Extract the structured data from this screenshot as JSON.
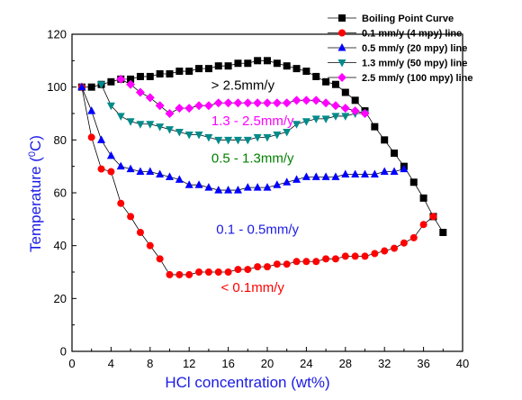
{
  "chart_data": {
    "type": "line",
    "xlabel": "HCl concentration (wt%)",
    "ylabel": "Temperature (°C)",
    "ylabel_main": "Temperature (",
    "ylabel_sup": "0",
    "ylabel_unit": "C)",
    "xlim": [
      0,
      40
    ],
    "ylim": [
      0,
      120
    ],
    "xticks": [
      0,
      4,
      8,
      12,
      16,
      20,
      24,
      28,
      32,
      36,
      40
    ],
    "yticks": [
      0,
      20,
      40,
      60,
      80,
      100,
      120
    ],
    "grid": false,
    "legend_position": "top-right",
    "series": [
      {
        "name": "Boiling Point Curve",
        "color": "#000000",
        "marker": "square",
        "x": [
          1,
          2,
          3,
          4,
          5,
          6,
          7,
          8,
          9,
          10,
          11,
          12,
          13,
          14,
          15,
          16,
          17,
          18,
          19,
          20,
          21,
          22,
          23,
          24,
          25,
          26,
          27,
          28,
          29,
          30,
          31,
          32,
          33,
          34,
          35,
          36,
          37,
          38
        ],
        "y": [
          100,
          100,
          101,
          102,
          103,
          103,
          104,
          104,
          105,
          105,
          106,
          106,
          107,
          107,
          108,
          108,
          109,
          109,
          110,
          110,
          109,
          108,
          107,
          106,
          104,
          102,
          101,
          98,
          95,
          91,
          85,
          80,
          75,
          70,
          64,
          58,
          51,
          45
        ]
      },
      {
        "name": "0.1 mm/y (4 mpy) line",
        "color": "#ff0000",
        "marker": "circle",
        "x": [
          1,
          2,
          3,
          4,
          5,
          6,
          7,
          8,
          9,
          10,
          11,
          12,
          13,
          14,
          15,
          16,
          17,
          18,
          19,
          20,
          21,
          22,
          23,
          24,
          25,
          26,
          27,
          28,
          29,
          30,
          31,
          32,
          33,
          34,
          35,
          36,
          37
        ],
        "y": [
          100,
          81,
          69,
          68,
          56,
          51,
          45,
          40,
          35,
          29,
          29,
          29,
          30,
          30,
          30,
          30,
          31,
          31,
          32,
          32,
          33,
          33,
          34,
          34,
          34,
          35,
          35,
          36,
          36,
          36,
          37,
          38,
          39,
          41,
          43,
          48,
          51
        ]
      },
      {
        "name": "0.5 mm/y (20 mpy) line",
        "color": "#0000ff",
        "marker": "triangle-up",
        "x": [
          1,
          2,
          3,
          4,
          5,
          6,
          7,
          8,
          9,
          10,
          11,
          12,
          13,
          14,
          15,
          16,
          17,
          18,
          19,
          20,
          21,
          22,
          23,
          24,
          25,
          26,
          27,
          28,
          29,
          30,
          31,
          32,
          33,
          34
        ],
        "y": [
          100,
          91,
          80,
          74,
          70,
          69,
          68,
          68,
          67,
          66,
          65,
          63,
          63,
          62,
          61,
          61,
          61,
          62,
          62,
          62,
          63,
          64,
          65,
          66,
          66,
          66,
          66,
          67,
          67,
          67,
          67,
          68,
          68,
          69
        ]
      },
      {
        "name": "1.3 mm/y (50 mpy) line",
        "color": "#008b8b",
        "marker": "triangle-down",
        "x": [
          3,
          4,
          5,
          6,
          7,
          8,
          9,
          10,
          11,
          12,
          13,
          14,
          15,
          16,
          17,
          18,
          19,
          20,
          21,
          22,
          23,
          24,
          25,
          26,
          27,
          28,
          29,
          30
        ],
        "y": [
          101,
          93,
          89,
          87,
          86,
          86,
          85,
          84,
          83,
          82,
          82,
          81,
          80,
          80,
          80,
          80,
          81,
          81,
          82,
          83,
          86,
          87,
          88,
          88,
          89,
          89,
          90,
          90
        ]
      },
      {
        "name": "2.5 mm/y (100 mpy) line",
        "color": "#ff00ff",
        "marker": "diamond",
        "x": [
          5,
          6,
          7,
          8,
          9,
          10,
          11,
          12,
          13,
          14,
          15,
          16,
          17,
          18,
          19,
          20,
          21,
          22,
          23,
          24,
          25,
          26,
          27,
          28,
          29,
          30
        ],
        "y": [
          103,
          101,
          98,
          96,
          93,
          90,
          92,
          92,
          93,
          93,
          94,
          94,
          94,
          94,
          94,
          94,
          94,
          94,
          95,
          95,
          95,
          94,
          93,
          92,
          91,
          90
        ]
      }
    ],
    "annotations": [
      {
        "text": "> 2.5mm/y",
        "x": 17.5,
        "y": 99,
        "color": "#000000"
      },
      {
        "text": "1.3 - 2.5mm/y",
        "x": 18.5,
        "y": 85.5,
        "color": "#ff00ff"
      },
      {
        "text": "0.5 - 1.3mm/y",
        "x": 18.5,
        "y": 71.5,
        "color": "#008000"
      },
      {
        "text": "0.1 - 0.5mm/y",
        "x": 19,
        "y": 44.5,
        "color": "#1a1ae6"
      },
      {
        "text": "< 0.1mm/y",
        "x": 18.5,
        "y": 22.5,
        "color": "#ff0000"
      }
    ]
  }
}
